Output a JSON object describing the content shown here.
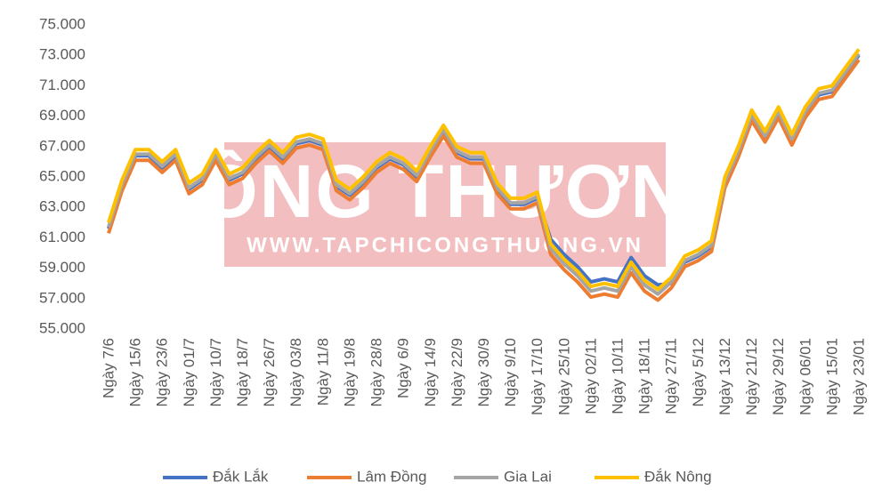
{
  "chart_data": {
    "type": "line",
    "watermark": {
      "title": "CÔNG THƯƠNG",
      "url": "WWW.TAPCHICONGTHUONG.VN"
    },
    "categories": [
      "Ngày 7/6",
      null,
      "Ngày 15/6",
      null,
      "Ngày 23/6",
      null,
      "Ngày 01/7",
      null,
      "Ngày 10/7",
      null,
      "Ngày 18/7",
      null,
      "Ngày 26/7",
      null,
      "Ngày 03/8",
      null,
      "Ngày 11/8",
      null,
      "Ngày 19/8",
      null,
      "Ngày 28/8",
      null,
      "Ngày 6/9",
      null,
      "Ngày 14/9",
      null,
      "Ngày 22/9",
      null,
      "Ngày 30/9",
      null,
      "Ngày 9/10",
      null,
      "Ngày 17/10",
      null,
      "Ngày 25/10",
      null,
      "Ngày 02/11",
      null,
      "Ngày 10/11",
      null,
      "Ngày 18/11",
      null,
      "Ngày 27/11",
      null,
      "Ngày 5/12",
      null,
      "Ngày 13/12",
      null,
      "Ngày 21/12",
      null,
      "Ngày 29/12",
      null,
      "Ngày 06/01",
      null,
      "Ngày 15/01",
      null,
      "Ngày 23/01"
    ],
    "series": [
      {
        "name": "Đắk Lắk",
        "color": "#4472c4",
        "values": [
          61600,
          64400,
          66400,
          66400,
          65600,
          66400,
          64200,
          64800,
          66400,
          64800,
          65200,
          66200,
          67000,
          66200,
          67200,
          67400,
          67100,
          64400,
          63800,
          64600,
          65600,
          66200,
          65800,
          65000,
          66600,
          68000,
          66600,
          66200,
          66200,
          64200,
          63200,
          63200,
          63600,
          60900,
          59900,
          59100,
          58100,
          58300,
          58100,
          59700,
          58500,
          57900,
          58000,
          59400,
          59800,
          60400,
          64600,
          66600,
          69000,
          67600,
          69200,
          67400,
          69200,
          70400,
          70600,
          71800,
          73000
        ]
      },
      {
        "name": "Lâm Đồng",
        "color": "#ed7d31",
        "values": [
          61300,
          64100,
          66100,
          66100,
          65300,
          66100,
          63900,
          64500,
          66100,
          64500,
          64900,
          65900,
          66700,
          65900,
          66900,
          67100,
          66800,
          64100,
          63500,
          64300,
          65300,
          65900,
          65500,
          64700,
          66300,
          67700,
          66300,
          65900,
          65900,
          63900,
          62900,
          62900,
          63300,
          59900,
          58900,
          58100,
          57100,
          57300,
          57100,
          58700,
          57500,
          56900,
          57700,
          59100,
          59500,
          60100,
          64300,
          66300,
          68700,
          67300,
          68900,
          67100,
          68900,
          70100,
          70300,
          71500,
          72700
        ]
      },
      {
        "name": "Gia Lai",
        "color": "#a5a5a5",
        "values": [
          61700,
          64500,
          66500,
          66500,
          65700,
          66500,
          64300,
          64900,
          66500,
          64900,
          65300,
          66300,
          67100,
          66300,
          67300,
          67500,
          67200,
          64500,
          63900,
          64700,
          65700,
          66300,
          65900,
          65100,
          66700,
          68100,
          66700,
          66300,
          66300,
          64300,
          63300,
          63300,
          63700,
          60300,
          59300,
          58500,
          57500,
          57700,
          57500,
          59100,
          57900,
          57300,
          58100,
          59500,
          59900,
          60500,
          64700,
          66700,
          69100,
          67700,
          69300,
          67500,
          69300,
          70500,
          70700,
          71900,
          73100
        ]
      },
      {
        "name": "Đắk Nông",
        "color": "#ffc000",
        "values": [
          62000,
          64800,
          66800,
          66800,
          66000,
          66800,
          64600,
          65200,
          66800,
          65200,
          65600,
          66600,
          67400,
          66600,
          67600,
          67800,
          67500,
          64800,
          64200,
          65000,
          66000,
          66600,
          66200,
          65400,
          67000,
          68400,
          67000,
          66600,
          66600,
          64600,
          63600,
          63600,
          64000,
          60600,
          59600,
          58800,
          57800,
          58000,
          57800,
          59400,
          58200,
          57600,
          58400,
          59800,
          60200,
          60800,
          65000,
          67000,
          69400,
          68000,
          69600,
          67800,
          69600,
          70800,
          71000,
          72200,
          73400
        ]
      }
    ],
    "ylim": [
      55000,
      75000
    ],
    "yticks": [
      {
        "value": 55000,
        "label": "55.000"
      },
      {
        "value": 57000,
        "label": "57.000"
      },
      {
        "value": 59000,
        "label": "59.000"
      },
      {
        "value": 61000,
        "label": "61.000"
      },
      {
        "value": 63000,
        "label": "63.000"
      },
      {
        "value": 65000,
        "label": "65.000"
      },
      {
        "value": 67000,
        "label": "67.000"
      },
      {
        "value": 69000,
        "label": "69.000"
      },
      {
        "value": 71000,
        "label": "71.000"
      },
      {
        "value": 73000,
        "label": "73.000"
      },
      {
        "value": 75000,
        "label": "75.000"
      }
    ],
    "grid": false,
    "legend": "bottom"
  }
}
